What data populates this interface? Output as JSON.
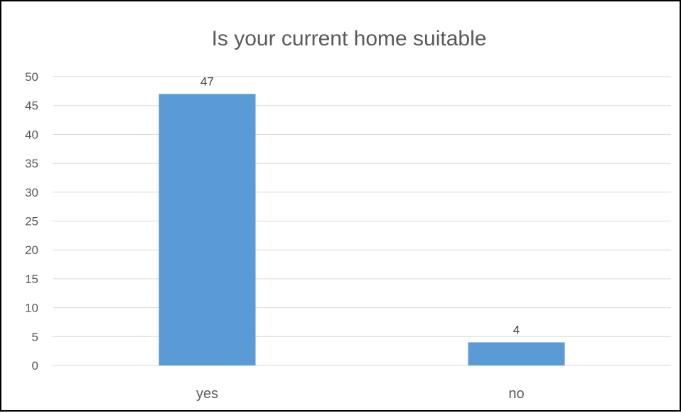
{
  "chart_data": {
    "type": "bar",
    "title": "Is your current home suitable",
    "categories": [
      "yes",
      "no"
    ],
    "values": [
      47,
      4
    ],
    "data_labels": [
      "47",
      "4"
    ],
    "ylim": [
      0,
      50
    ],
    "yticks": [
      0,
      5,
      10,
      15,
      20,
      25,
      30,
      35,
      40,
      45,
      50
    ],
    "ytick_labels": [
      "0",
      "5",
      "10",
      "15",
      "20",
      "25",
      "30",
      "35",
      "40",
      "45",
      "50"
    ],
    "xlabel": "",
    "ylabel": "",
    "grid": true,
    "legend": "none",
    "colors": {
      "bar": "#5b9bd5",
      "grid": "#d9d9d9",
      "text": "#595959",
      "border": "#000000"
    }
  }
}
